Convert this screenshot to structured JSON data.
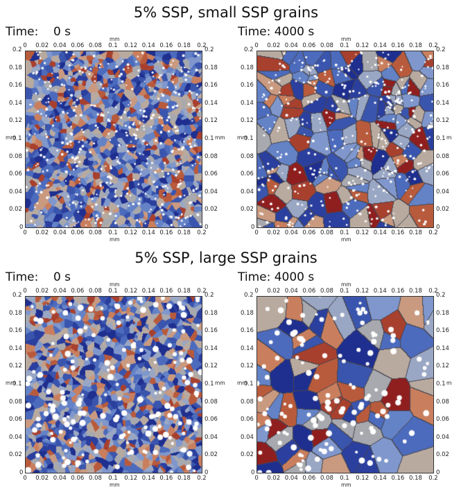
{
  "sections": [
    {
      "title": "5% SSP, small SSP grains",
      "panels": [
        {
          "time_label": "Time:    0 s",
          "stage": "initial",
          "particle_size": "small"
        },
        {
          "time_label": "Time: 4000 s",
          "stage": "coarsened",
          "particle_size": "small"
        }
      ]
    },
    {
      "title": "5% SSP, large SSP grains",
      "panels": [
        {
          "time_label": "Time:    0 s",
          "stage": "initial",
          "particle_size": "large"
        },
        {
          "time_label": "Time: 4000 s",
          "stage": "coarsened",
          "particle_size": "large"
        }
      ]
    }
  ],
  "axis": {
    "unit": "mm",
    "x_ticks": [
      "0",
      "0.02",
      "0.04",
      "0.06",
      "0.08",
      "0.1",
      "0.12",
      "0.14",
      "0.16",
      "0.18",
      "0.2"
    ],
    "y_ticks": [
      "0",
      "0.02",
      "0.04",
      "0.06",
      "0.08",
      "0.1",
      "0.12",
      "0.14",
      "0.16",
      "0.18",
      "0.2"
    ],
    "range": [
      0,
      0.2
    ]
  },
  "colors": {
    "grain_palette": [
      "#1f2f8f",
      "#2b3f9e",
      "#3a55ad",
      "#4d6bbd",
      "#6482c6",
      "#7f97cc",
      "#9aa7c4",
      "#a8a9ae",
      "#b9aaa0",
      "#c99a80",
      "#c97f5e",
      "#b85b3c",
      "#a8402e",
      "#8f1f1f"
    ],
    "particle": "#ffffff",
    "boundary": "#444444"
  }
}
